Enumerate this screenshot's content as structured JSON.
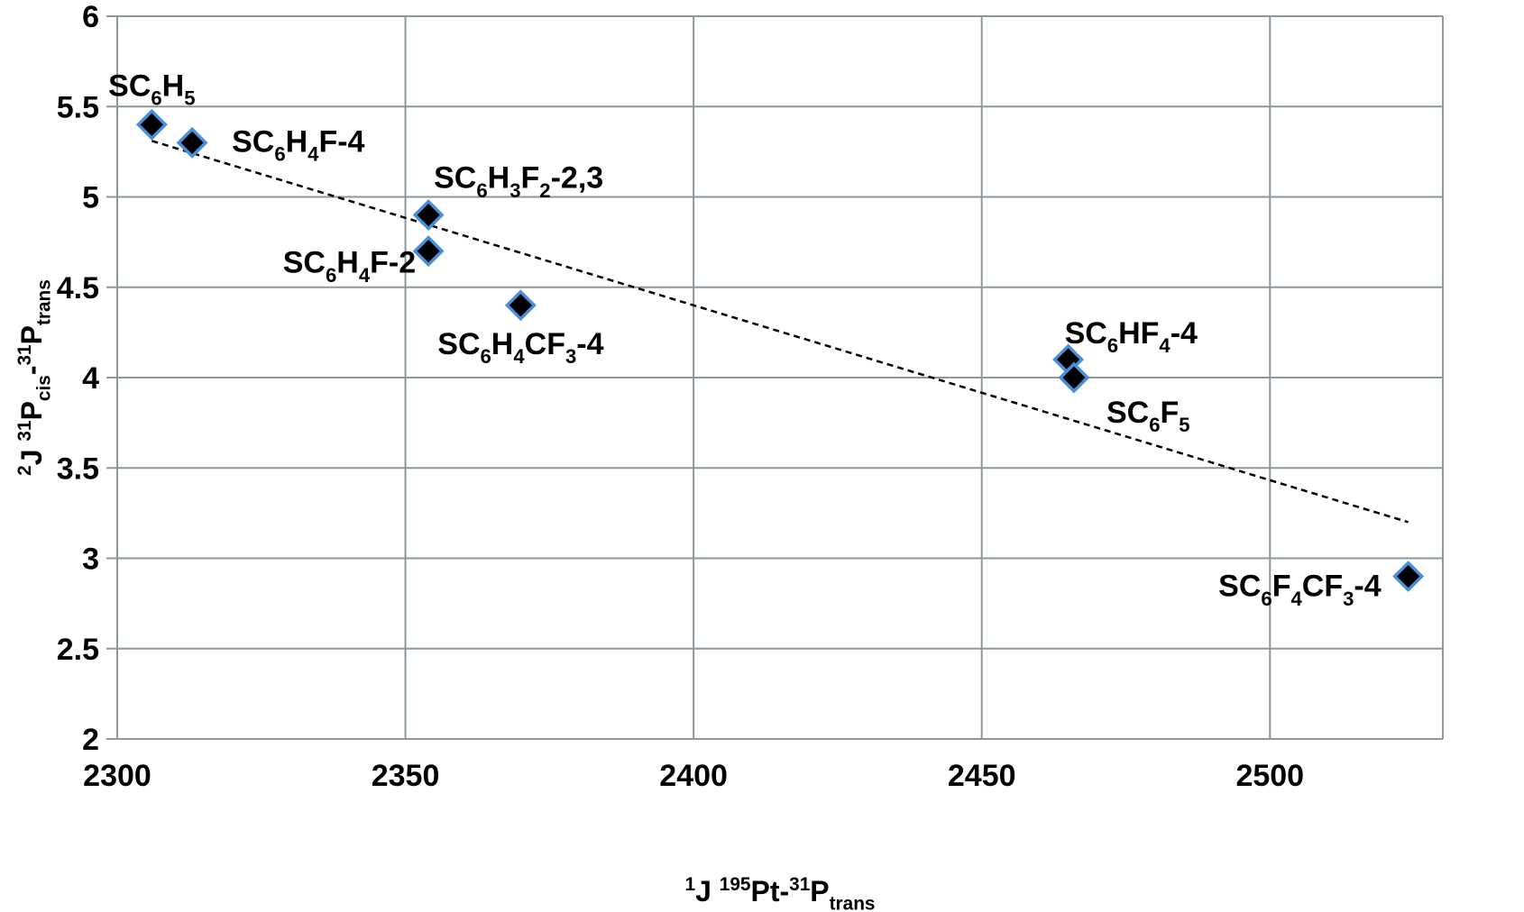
{
  "chart_data": {
    "type": "scatter",
    "title": "",
    "xlabel": {
      "parts": [
        {
          "text": "1",
          "style": "sup"
        },
        {
          "text": "J ",
          "style": "normal"
        },
        {
          "text": "195",
          "style": "sup"
        },
        {
          "text": "Pt-",
          "style": "normal"
        },
        {
          "text": "31",
          "style": "sup"
        },
        {
          "text": "P",
          "style": "normal"
        },
        {
          "text": "trans",
          "style": "sub"
        }
      ]
    },
    "ylabel": {
      "parts": [
        {
          "text": "2",
          "style": "sup"
        },
        {
          "text": "J ",
          "style": "normal"
        },
        {
          "text": "31",
          "style": "sup"
        },
        {
          "text": "P",
          "style": "normal"
        },
        {
          "text": "cis",
          "style": "sub"
        },
        {
          "text": "-",
          "style": "normal"
        },
        {
          "text": "31",
          "style": "sup"
        },
        {
          "text": "P",
          "style": "normal"
        },
        {
          "text": "trans",
          "style": "sub"
        }
      ]
    },
    "xlim": [
      2300,
      2530
    ],
    "ylim": [
      2,
      6
    ],
    "xticks": [
      "2300",
      "2350",
      "2400",
      "2450",
      "2500"
    ],
    "yticks": [
      "2",
      "2.5",
      "3",
      "3.5",
      "4",
      "4.5",
      "5",
      "5.5",
      "6"
    ],
    "grid": true,
    "legend": "none",
    "colors": {
      "marker_fill": "#000000",
      "marker_edge": "#4a90d9",
      "grid": "#8c9898",
      "trend": "#000000"
    },
    "points": [
      {
        "x": 2306,
        "y": 5.4,
        "label": [
          {
            "text": "SC",
            "style": "normal"
          },
          {
            "text": "6",
            "style": "sub"
          },
          {
            "text": "H",
            "style": "normal"
          },
          {
            "text": "5",
            "style": "sub"
          }
        ]
      },
      {
        "x": 2313,
        "y": 5.3,
        "label": [
          {
            "text": "SC",
            "style": "normal"
          },
          {
            "text": "6",
            "style": "sub"
          },
          {
            "text": "H",
            "style": "normal"
          },
          {
            "text": "4",
            "style": "sub"
          },
          {
            "text": "F-4",
            "style": "normal"
          }
        ]
      },
      {
        "x": 2354,
        "y": 4.9,
        "label": [
          {
            "text": "SC",
            "style": "normal"
          },
          {
            "text": "6",
            "style": "sub"
          },
          {
            "text": "H",
            "style": "normal"
          },
          {
            "text": "3",
            "style": "sub"
          },
          {
            "text": "F",
            "style": "normal"
          },
          {
            "text": "2",
            "style": "sub"
          },
          {
            "text": "-2,3",
            "style": "normal"
          }
        ]
      },
      {
        "x": 2354,
        "y": 4.7,
        "label": [
          {
            "text": "SC",
            "style": "normal"
          },
          {
            "text": "6",
            "style": "sub"
          },
          {
            "text": "H",
            "style": "normal"
          },
          {
            "text": "4",
            "style": "sub"
          },
          {
            "text": "F-2",
            "style": "normal"
          }
        ]
      },
      {
        "x": 2370,
        "y": 4.4,
        "label": [
          {
            "text": "SC",
            "style": "normal"
          },
          {
            "text": "6",
            "style": "sub"
          },
          {
            "text": "H",
            "style": "normal"
          },
          {
            "text": "4",
            "style": "sub"
          },
          {
            "text": "CF",
            "style": "normal"
          },
          {
            "text": "3",
            "style": "sub"
          },
          {
            "text": "-4",
            "style": "normal"
          }
        ]
      },
      {
        "x": 2465,
        "y": 4.1,
        "label": [
          {
            "text": "SC",
            "style": "normal"
          },
          {
            "text": "6",
            "style": "sub"
          },
          {
            "text": "HF",
            "style": "normal"
          },
          {
            "text": "4",
            "style": "sub"
          },
          {
            "text": "-4",
            "style": "normal"
          }
        ]
      },
      {
        "x": 2466,
        "y": 4.0,
        "label": [
          {
            "text": "SC",
            "style": "normal"
          },
          {
            "text": "6",
            "style": "sub"
          },
          {
            "text": "F",
            "style": "normal"
          },
          {
            "text": "5",
            "style": "sub"
          }
        ]
      },
      {
        "x": 2524,
        "y": 2.9,
        "label": [
          {
            "text": "SC",
            "style": "normal"
          },
          {
            "text": "6",
            "style": "sub"
          },
          {
            "text": "F",
            "style": "normal"
          },
          {
            "text": "4",
            "style": "sub"
          },
          {
            "text": "CF",
            "style": "normal"
          },
          {
            "text": "3",
            "style": "sub"
          },
          {
            "text": "-4",
            "style": "normal"
          }
        ]
      }
    ],
    "trendline": {
      "type": "linear",
      "x": [
        2306,
        2524
      ],
      "y": [
        5.31,
        3.2
      ]
    }
  }
}
